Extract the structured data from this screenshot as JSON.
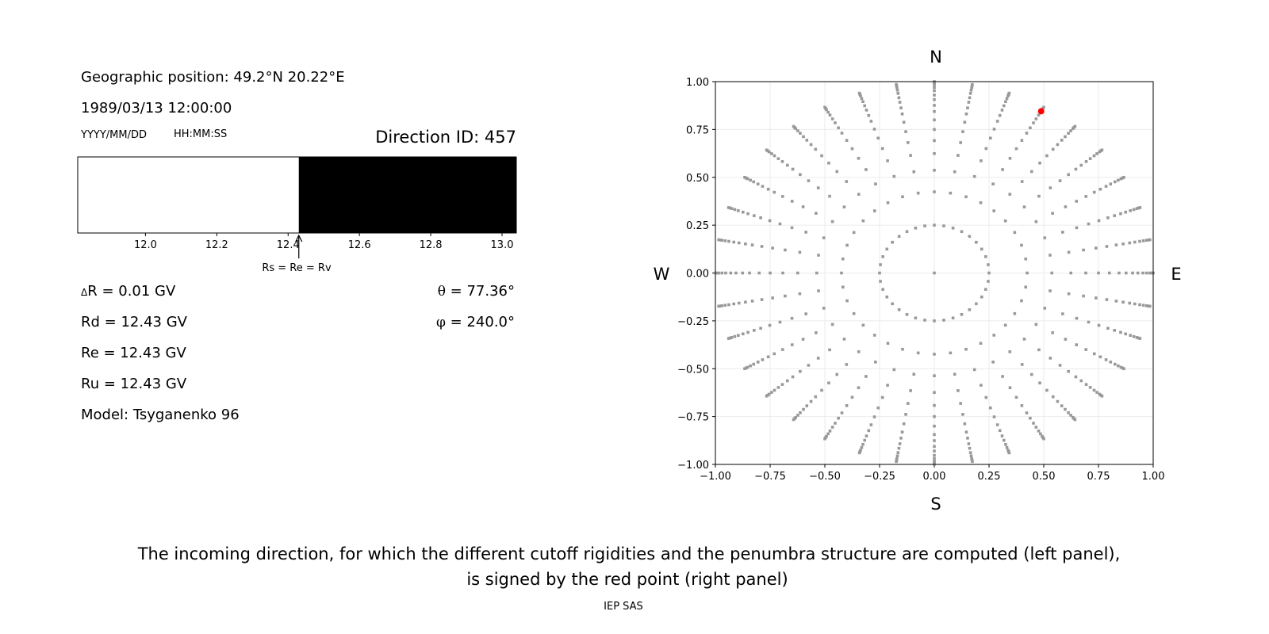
{
  "info": {
    "geo_position": "Geographic position: 49.2°N 20.22°E",
    "datetime": "1989/03/13 12:00:00",
    "date_format": "YYYY/MM/DD",
    "time_format": "HH:MM:SS",
    "direction_id": "Direction ID: 457",
    "delta_r_symbol": "Δ",
    "delta_r": "R = 0.01 GV",
    "rd": "Rd = 12.43 GV",
    "re": "Re = 12.43 GV",
    "ru": "Ru = 12.43 GV",
    "model": "Model: Tsyganenko 96",
    "theta_symbol": "θ",
    "theta": " = 77.36°",
    "phi_symbol": "φ",
    "phi": " = 240.0°"
  },
  "caption": {
    "line1": "The incoming direction, for which the different cutoff rigidities and the penumbra structure are computed (left panel),",
    "line2": "is signed by the red point (right panel)",
    "credit": "IEP SAS"
  },
  "chart_data": [
    {
      "type": "bar",
      "orientation": "horizontal-band",
      "xlim": [
        11.81,
        13.04
      ],
      "xticks": [
        "12.0",
        "12.2",
        "12.4",
        "12.6",
        "12.8",
        "13.0"
      ],
      "xtick_values": [
        12.0,
        12.2,
        12.4,
        12.6,
        12.8,
        13.0
      ],
      "segments": [
        {
          "from": 11.81,
          "to": 12.43,
          "color": "#ffffff"
        },
        {
          "from": 12.43,
          "to": 13.04,
          "color": "#000000"
        }
      ],
      "annotation": {
        "text": "Rs = Re = Rv",
        "x": 12.43
      }
    },
    {
      "type": "scatter",
      "xlim": [
        -1.0,
        1.0
      ],
      "ylim": [
        -1.0,
        1.0
      ],
      "xticks": [
        "−1.00",
        "−0.75",
        "−0.50",
        "−0.25",
        "0.00",
        "0.25",
        "0.50",
        "0.75",
        "1.00"
      ],
      "yticks": [
        "−1.00",
        "−0.75",
        "−0.50",
        "−0.25",
        "0.00",
        "0.25",
        "0.50",
        "0.75",
        "1.00"
      ],
      "tick_values": [
        -1.0,
        -0.75,
        -0.5,
        -0.25,
        0.0,
        0.25,
        0.5,
        0.75,
        1.0
      ],
      "grid": true,
      "compass": {
        "north": "N",
        "south": "S",
        "west": "W",
        "east": "E"
      },
      "grid_points": {
        "center": [
          0.0,
          0.0
        ],
        "azimuths_deg": [
          0,
          10,
          20,
          30,
          40,
          50,
          60,
          70,
          80,
          90,
          100,
          110,
          120,
          130,
          140,
          150,
          160,
          170,
          180,
          190,
          200,
          210,
          220,
          230,
          240,
          250,
          260,
          270,
          280,
          290,
          300,
          310,
          320,
          330,
          340,
          350
        ],
        "radii": [
          0.25,
          0.424,
          0.537,
          0.624,
          0.692,
          0.75,
          0.8,
          0.844,
          0.876,
          0.906,
          0.93,
          0.953,
          0.97,
          0.985,
          0.993,
          1.0
        ],
        "color": "#999999"
      },
      "selected_point": {
        "x": 0.488,
        "y": 0.845,
        "color": "#ff0000"
      }
    }
  ]
}
